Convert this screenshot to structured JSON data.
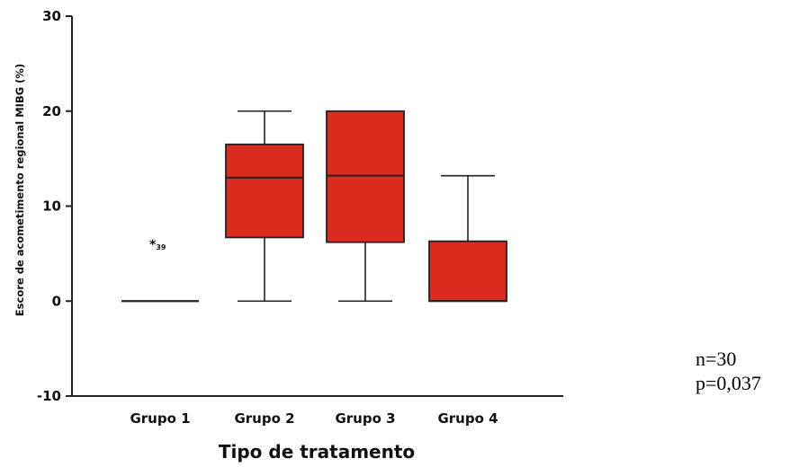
{
  "chart_data": {
    "type": "boxplot",
    "title": "",
    "xlabel": "Tipo de tratamento",
    "ylabel": "Escore de acometimento regional MIBG (%)",
    "ylim": [
      -10,
      30
    ],
    "yticks": [
      -10,
      0,
      10,
      20,
      30
    ],
    "categories": [
      "Grupo 1",
      "Grupo 2",
      "Grupo 3",
      "Grupo 4"
    ],
    "boxes": [
      {
        "category": "Grupo 1",
        "min": 0,
        "q1": 0,
        "median": 0,
        "q3": 0,
        "max": 0
      },
      {
        "category": "Grupo 2",
        "min": 0,
        "q1": 6.7,
        "median": 13,
        "q3": 16.5,
        "max": 20
      },
      {
        "category": "Grupo 3",
        "min": 0,
        "q1": 6.2,
        "median": 13.2,
        "q3": 20,
        "max": 20
      },
      {
        "category": "Grupo 4",
        "min": 0,
        "q1": 0,
        "median": 0,
        "q3": 6.3,
        "max": 13.2
      }
    ],
    "outliers": [
      {
        "category": "Grupo 1",
        "value": 6,
        "marker": "*",
        "label": "39"
      }
    ],
    "box_color": "#dd2a1f",
    "grid": false,
    "legend": "none"
  },
  "annotations": {
    "n": "n=30",
    "p": "p=0,037"
  }
}
